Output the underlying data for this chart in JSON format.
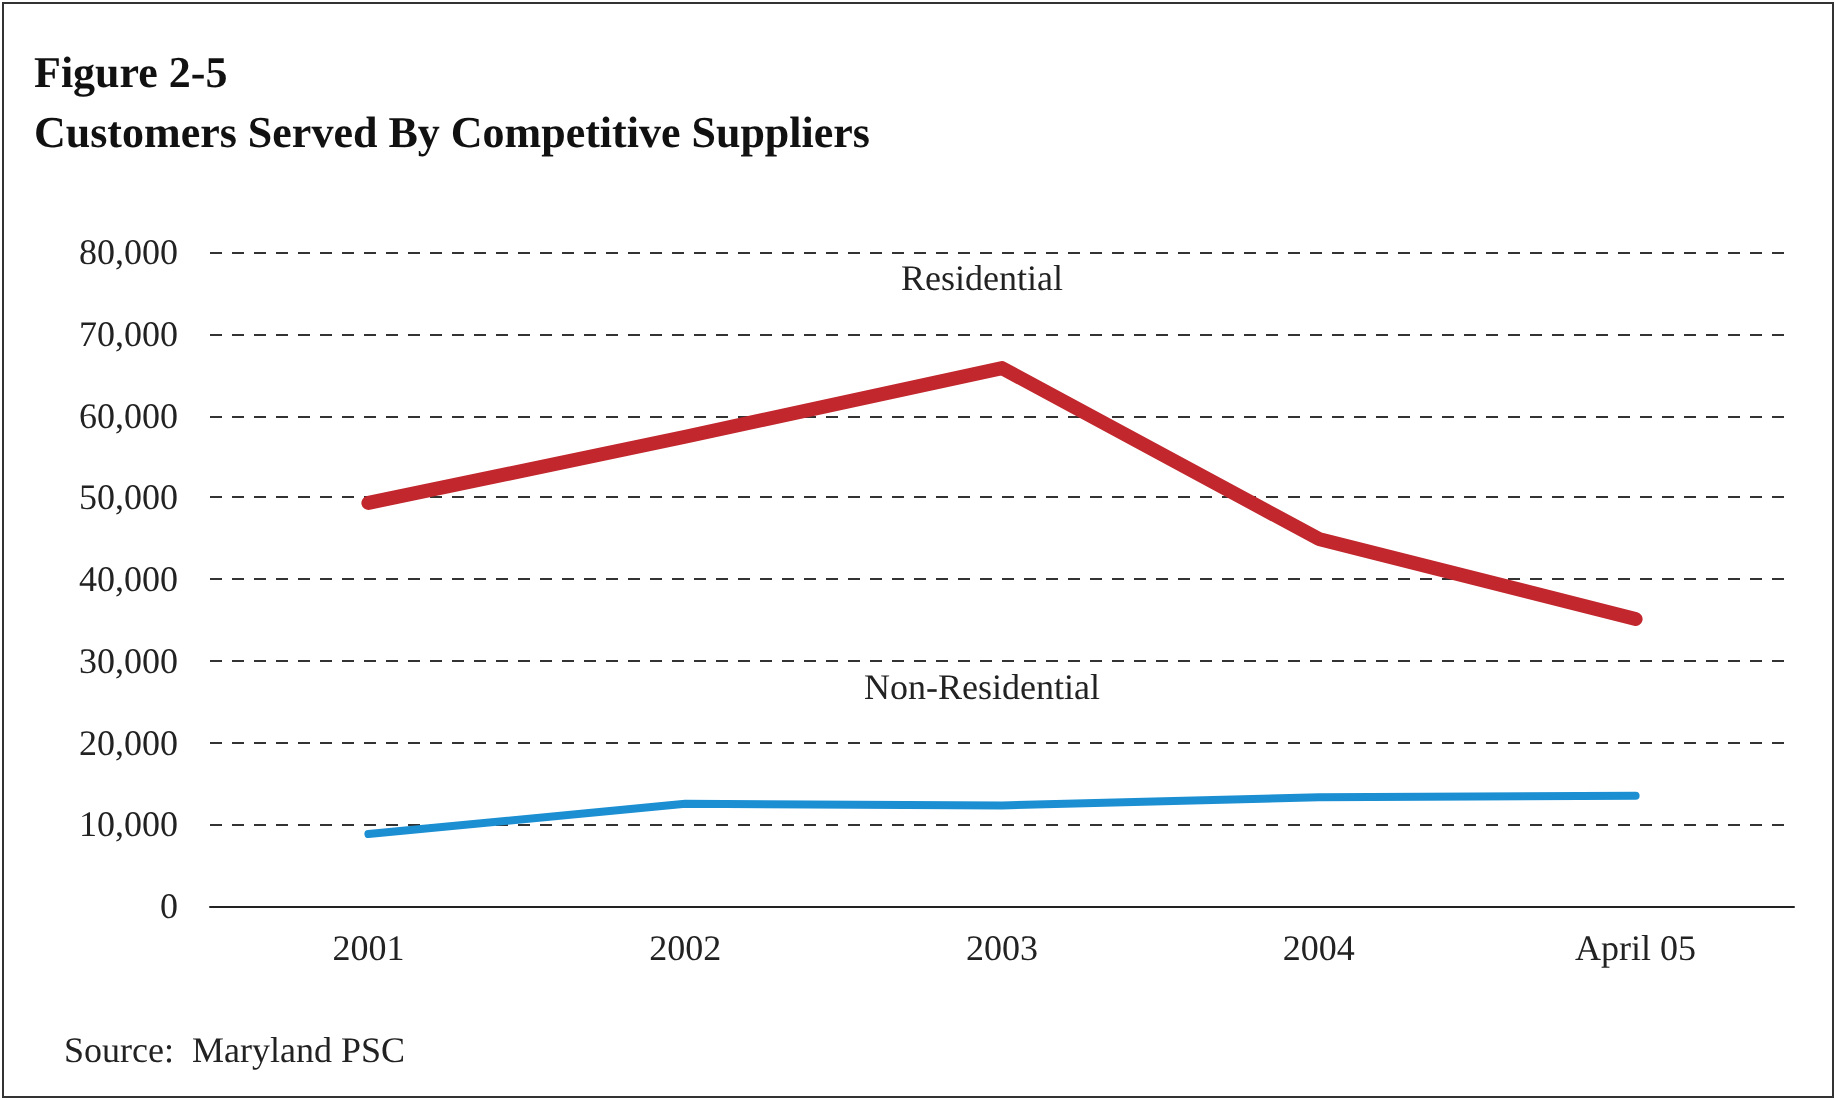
{
  "chart_data": {
    "type": "line",
    "title": "Figure 2-5\nCustomers Served By Competitive Suppliers",
    "categories": [
      "2001",
      "2002",
      "2003",
      "2004",
      "April 05"
    ],
    "series": [
      {
        "name": "Residential",
        "color": "#c1272d",
        "values": [
          49300,
          57400,
          65800,
          44900,
          35100
        ]
      },
      {
        "name": "Non-Residential",
        "color": "#1b8fd2",
        "values": [
          8800,
          12500,
          12300,
          13300,
          13500
        ]
      }
    ],
    "ylim": [
      0,
      80000
    ],
    "yticks": [
      0,
      {
        "value": 10000,
        "label": "10,000"
      },
      {
        "value": 20000,
        "label": "20,000"
      },
      {
        "value": 30000,
        "label": "30,000"
      },
      {
        "value": 40000,
        "label": "40,000"
      },
      {
        "value": 50000,
        "label": "50,000"
      },
      {
        "value": 60000,
        "label": "60,000"
      },
      {
        "value": 70000,
        "label": "70,000"
      },
      {
        "value": 80000,
        "label": "80,000"
      }
    ],
    "grid": "y",
    "legend": false,
    "marker": "none",
    "line_style": "solid",
    "annotations": [
      "Source:  Maryland PSC"
    ]
  }
}
